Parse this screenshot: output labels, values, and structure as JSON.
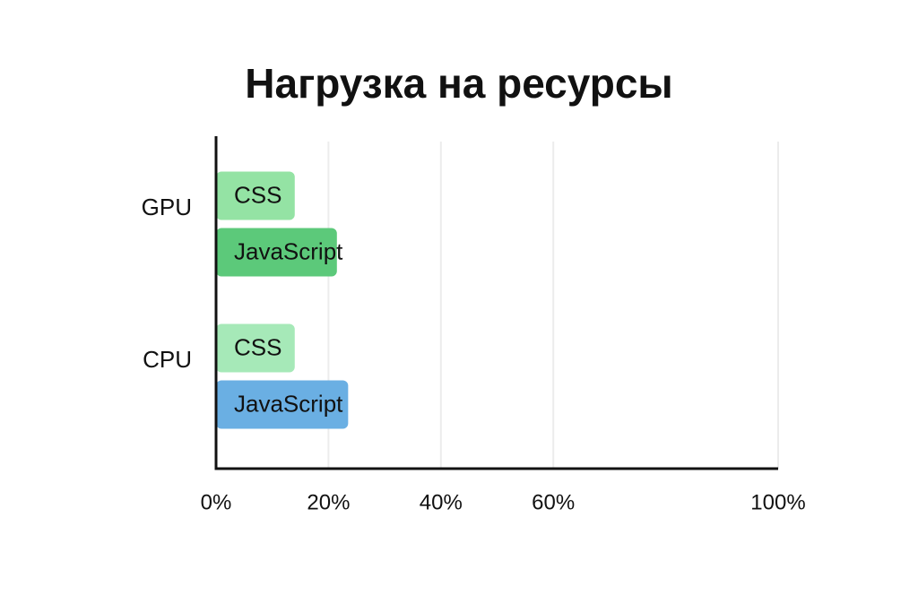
{
  "chart_data": {
    "type": "hbar",
    "title": "Нагрузка на ресурсы",
    "categories": [
      "GPU",
      "CPU"
    ],
    "series": [
      {
        "name": "CSS",
        "colors": [
          "#94e3a4",
          "#a6e9b8"
        ],
        "values": [
          14,
          14
        ]
      },
      {
        "name": "JavaScript",
        "colors": [
          "#5cc97a",
          "#6aafe3"
        ],
        "values": [
          21.5,
          23.5
        ]
      }
    ],
    "xlim": [
      0,
      100
    ],
    "xticks": [
      {
        "value": 0,
        "label": "0%"
      },
      {
        "value": 20,
        "label": "20%"
      },
      {
        "value": 40,
        "label": "40%"
      },
      {
        "value": 60,
        "label": "60%"
      },
      {
        "value": 100,
        "label": "100%"
      }
    ],
    "grid": true
  }
}
